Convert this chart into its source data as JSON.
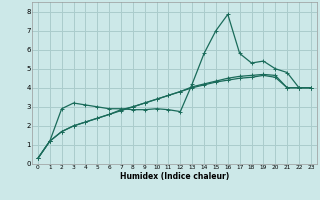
{
  "xlabel": "Humidex (Indice chaleur)",
  "bg_color": "#cce8e8",
  "grid_color": "#aacccc",
  "line_color": "#1a6b5a",
  "xlim": [
    -0.5,
    23.5
  ],
  "ylim": [
    0,
    8.5
  ],
  "xticks": [
    0,
    1,
    2,
    3,
    4,
    5,
    6,
    7,
    8,
    9,
    10,
    11,
    12,
    13,
    14,
    15,
    16,
    17,
    18,
    19,
    20,
    21,
    22,
    23
  ],
  "yticks": [
    0,
    1,
    2,
    3,
    4,
    5,
    6,
    7,
    8
  ],
  "line1_x": [
    0,
    1,
    2,
    3,
    4,
    5,
    6,
    7,
    8,
    9,
    10,
    11,
    12,
    13,
    14,
    15,
    16,
    17,
    18,
    19,
    20,
    21,
    22,
    23
  ],
  "line1_y": [
    0.3,
    1.2,
    1.7,
    2.0,
    2.2,
    2.4,
    2.6,
    2.8,
    3.0,
    3.2,
    3.4,
    3.6,
    3.8,
    4.0,
    4.15,
    4.3,
    4.4,
    4.5,
    4.55,
    4.65,
    4.55,
    4.0,
    4.0,
    4.0
  ],
  "line2_x": [
    0,
    1,
    2,
    3,
    4,
    5,
    6,
    7,
    8,
    9,
    10,
    11,
    12,
    13,
    14,
    15,
    16,
    17,
    18,
    19,
    20,
    21,
    22,
    23
  ],
  "line2_y": [
    0.3,
    1.2,
    2.9,
    3.2,
    3.1,
    3.0,
    2.9,
    2.9,
    2.85,
    2.85,
    2.9,
    2.85,
    2.75,
    4.2,
    5.8,
    7.0,
    7.85,
    5.8,
    5.3,
    5.4,
    5.0,
    4.8,
    4.0,
    4.0
  ],
  "line3_x": [
    0,
    1,
    2,
    3,
    4,
    5,
    6,
    7,
    8,
    9,
    10,
    11,
    12,
    13,
    14,
    15,
    16,
    17,
    18,
    19,
    20,
    21,
    22,
    23
  ],
  "line3_y": [
    0.3,
    1.2,
    1.7,
    2.0,
    2.2,
    2.4,
    2.6,
    2.85,
    3.0,
    3.2,
    3.4,
    3.6,
    3.8,
    4.05,
    4.2,
    4.35,
    4.5,
    4.6,
    4.65,
    4.7,
    4.65,
    4.0,
    4.0,
    4.0
  ]
}
